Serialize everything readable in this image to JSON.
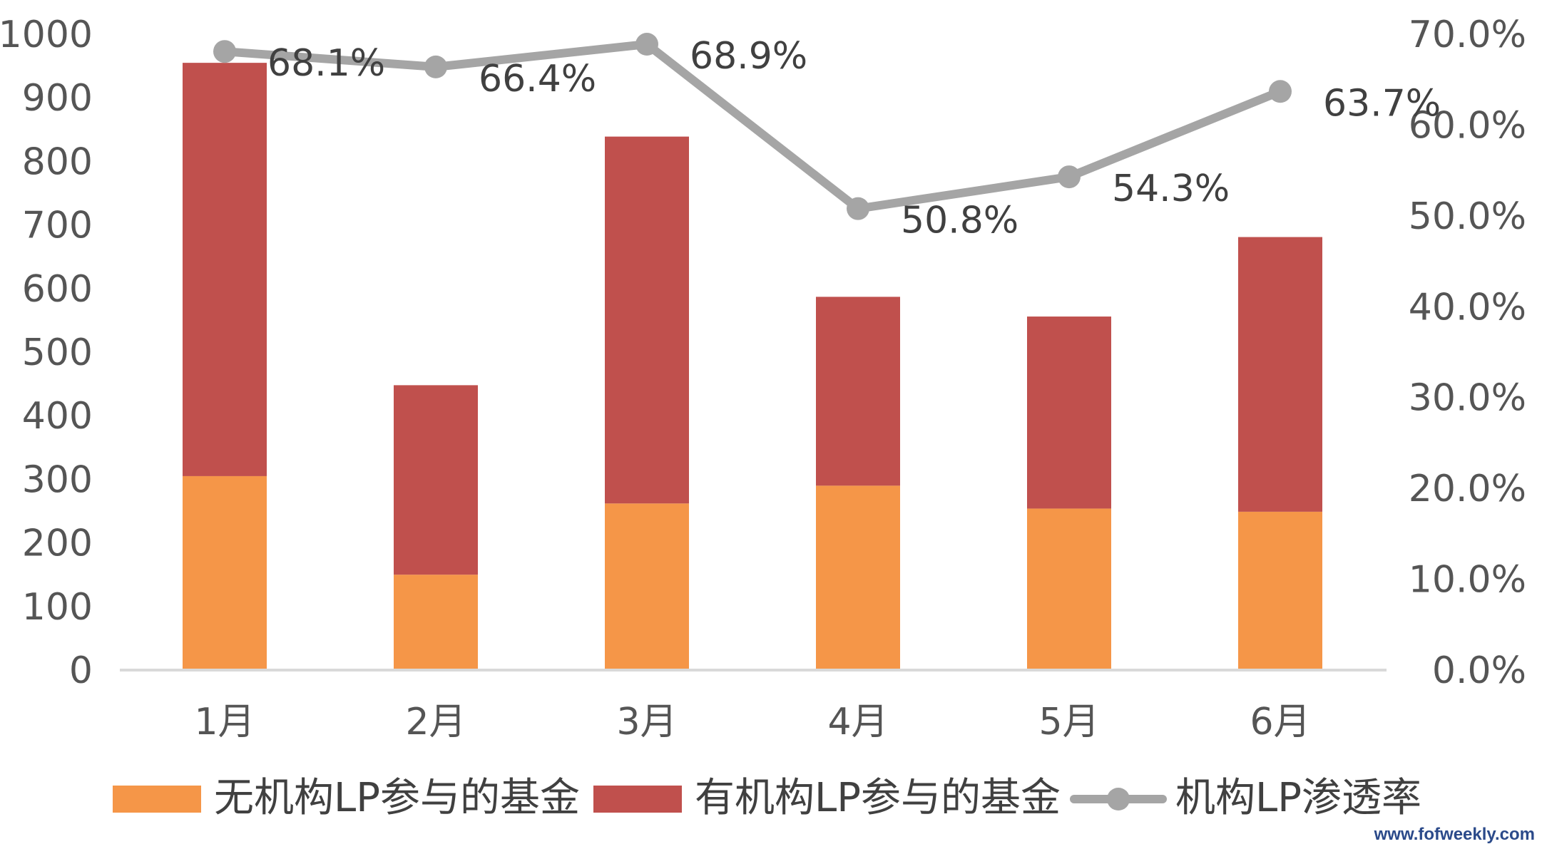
{
  "chart_data": {
    "type": "bar",
    "stacked": true,
    "categories": [
      "1月",
      "2月",
      "3月",
      "4月",
      "5月",
      "6月"
    ],
    "series": [
      {
        "name": "无机构LP参与的基金",
        "type": "bar",
        "axis": "left",
        "color": "#F59648",
        "values": [
          305,
          150,
          262,
          290,
          254,
          249
        ]
      },
      {
        "name": "有机构LP参与的基金",
        "type": "bar",
        "axis": "left",
        "color": "#C0504D",
        "values": [
          650,
          298,
          577,
          297,
          302,
          432
        ]
      },
      {
        "name": "机构LP渗透率",
        "type": "line",
        "axis": "right",
        "color": "#A5A5A5",
        "values": [
          68.1,
          66.4,
          68.9,
          50.8,
          54.3,
          63.7
        ],
        "labels": [
          "68.1%",
          "66.4%",
          "68.9%",
          "50.8%",
          "54.3%",
          "63.7%"
        ]
      }
    ],
    "left_axis": {
      "ylim": [
        0,
        1000
      ],
      "ticks": [
        "0",
        "100",
        "200",
        "300",
        "400",
        "500",
        "600",
        "700",
        "800",
        "900",
        "1000"
      ]
    },
    "right_axis": {
      "ylim": [
        0,
        70
      ],
      "ticks": [
        "0.0%",
        "10.0%",
        "20.0%",
        "30.0%",
        "40.0%",
        "50.0%",
        "60.0%",
        "70.0%"
      ]
    },
    "grid": false,
    "legend_position": "bottom"
  },
  "watermark": "www.fofweekly.com"
}
